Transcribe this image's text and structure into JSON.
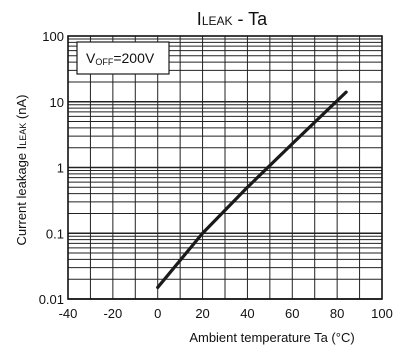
{
  "chart_data": {
    "type": "line",
    "title": {
      "main": "I",
      "sub": "LEAK",
      "rest": " - Ta"
    },
    "xlabel": "Ambient temperature Ta (°C)",
    "ylabel": {
      "pre": "Current leakage I",
      "sub": "LEAK",
      "post": " (nA)"
    },
    "annotation": {
      "main": "V",
      "sub": "OFF",
      "rest": "=200V"
    },
    "xlim": [
      -40,
      100
    ],
    "ylim": [
      0.01,
      100
    ],
    "yscale": "log",
    "grid": true,
    "x_ticks": [
      "-40",
      "-20",
      "0",
      "20",
      "40",
      "60",
      "80",
      "100"
    ],
    "y_ticks": [
      "0.01",
      "0.1",
      "1",
      "10",
      "100"
    ],
    "series": [
      {
        "x": [
          0,
          20,
          40,
          60,
          84
        ],
        "y": [
          0.015,
          0.1,
          0.5,
          2.3,
          14
        ],
        "color": "#1a1a1a"
      }
    ]
  }
}
